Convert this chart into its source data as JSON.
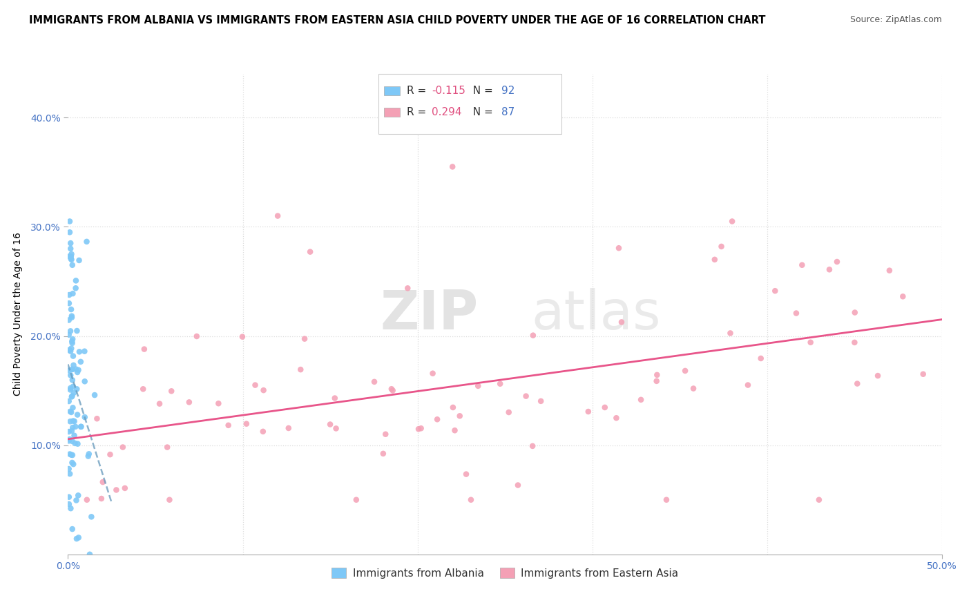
{
  "title": "IMMIGRANTS FROM ALBANIA VS IMMIGRANTS FROM EASTERN ASIA CHILD POVERTY UNDER THE AGE OF 16 CORRELATION CHART",
  "source": "Source: ZipAtlas.com",
  "ylabel": "Child Poverty Under the Age of 16",
  "legend_albania": "Immigrants from Albania",
  "legend_eastern_asia": "Immigrants from Eastern Asia",
  "R_albania": -0.115,
  "N_albania": 92,
  "R_eastern_asia": 0.294,
  "N_eastern_asia": 87,
  "xlim": [
    0.0,
    0.5
  ],
  "ylim": [
    0.0,
    0.44
  ],
  "yticks": [
    0.1,
    0.2,
    0.3,
    0.4
  ],
  "ytick_labels": [
    "10.0%",
    "20.0%",
    "30.0%",
    "40.0%"
  ],
  "color_albania": "#7ec8f7",
  "color_eastern_asia": "#f4a0b5",
  "color_albania_line": "#6699bb",
  "color_eastern_asia_line": "#e8558a",
  "watermark_zip": "ZIP",
  "watermark_atlas": "atlas",
  "background_color": "#ffffff",
  "grid_color": "#dddddd",
  "title_fontsize": 10.5,
  "source_fontsize": 9,
  "axis_label_fontsize": 10,
  "tick_fontsize": 10,
  "legend_fontsize": 11,
  "ytick_color": "#4472c4",
  "xtick_left_label": "0.0%",
  "xtick_right_label": "50.0%"
}
